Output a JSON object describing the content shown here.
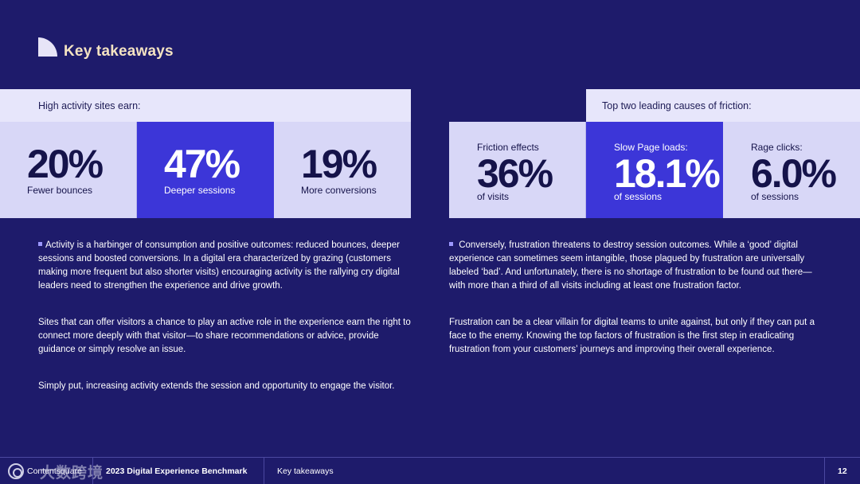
{
  "header": {
    "title": "Key takeaways"
  },
  "left": {
    "header": "High activity sites earn:",
    "stats": [
      {
        "value": "20%",
        "label": "Fewer bounces"
      },
      {
        "value": "47%",
        "label": "Deeper sessions"
      },
      {
        "value": "19%",
        "label": "More conversions"
      }
    ],
    "paragraphs": [
      "Activity is a harbinger of consumption and positive outcomes: reduced bounces, deeper sessions and boosted conversions. In a digital era characterized by grazing (customers making more frequent but also shorter visits) encouraging activity is the rallying cry digital leaders need to strengthen the experience and drive growth.",
      "Sites that can offer visitors a chance to play an active role in the experience earn the right to connect more deeply with that visitor—to share recommendations or advice,  provide guidance or simply resolve an issue.",
      "Simply put, increasing activity extends the session and opportunity to engage the visitor."
    ]
  },
  "right": {
    "header": "Top two leading causes of friction:",
    "stats": [
      {
        "top": "Friction effects",
        "value": "36%",
        "label": "of visits"
      },
      {
        "top": "Slow Page loads:",
        "value": "18.1%",
        "label": "of sessions"
      },
      {
        "top": "Rage clicks:",
        "value": "6.0%",
        "label": "of sessions"
      }
    ],
    "paragraphs": [
      "Conversely, frustration threatens to destroy session outcomes. While a ‘good’ digital experience can sometimes seem intangible, those plagued by frustration are universally labeled ‘bad’. And unfortunately, there is no shortage of frustration to be found out there—with more than a third of all visits including at least one frustration factor.",
      "Frustration can be a  clear villain for digital teams to unite against, but only if they can put a face to the enemy. Knowing the top factors of frustration is the first step in eradicating frustration from your customers’ journeys and improving their overall experience."
    ]
  },
  "footer": {
    "brand": "Contentsquare",
    "report": "2023 Digital Experience Benchmark",
    "section": "Key takeaways",
    "page": "12",
    "watermark": "大数跨境"
  }
}
